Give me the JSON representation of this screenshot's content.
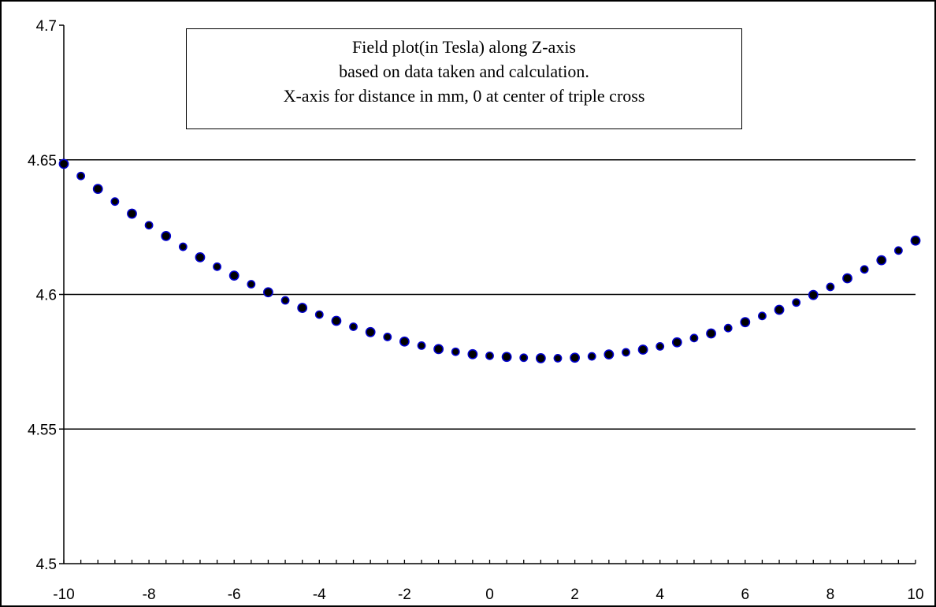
{
  "chart_data": {
    "type": "scatter",
    "title_lines": [
      "Field plot(in Tesla) along Z-axis",
      "based on data taken and calculation.",
      "X-axis for distance in mm, 0 at center of triple cross"
    ],
    "xlim": [
      -10,
      10
    ],
    "ylim": [
      4.5,
      4.7
    ],
    "x_ticks": [
      "-10",
      "-8",
      "-6",
      "-4",
      "-2",
      "0",
      "2",
      "4",
      "6",
      "8",
      "10"
    ],
    "y_ticks": [
      "4.5",
      "4.55",
      "4.6",
      "4.65",
      "4.7"
    ],
    "x_minor_step": 0.4,
    "grid": "horizontal-major",
    "marker_fill": "#000000",
    "marker_edge": "#0000cc",
    "x": [
      -10.0,
      -9.6,
      -9.2,
      -8.8,
      -8.4,
      -8.0,
      -7.6,
      -7.2,
      -6.8,
      -6.4,
      -6.0,
      -5.6,
      -5.2,
      -4.8,
      -4.4,
      -4.0,
      -3.6,
      -3.2,
      -2.8,
      -2.4,
      -2.0,
      -1.6,
      -1.2,
      -0.8,
      -0.4,
      0.0,
      0.4,
      0.8,
      1.2,
      1.6,
      2.0,
      2.4,
      2.8,
      3.2,
      3.6,
      4.0,
      4.4,
      4.8,
      5.2,
      5.6,
      6.0,
      6.4,
      6.8,
      7.2,
      7.6,
      8.0,
      8.4,
      8.8,
      9.2,
      9.6,
      10.0
    ],
    "y": [
      4.6485,
      4.644,
      4.6392,
      4.6345,
      4.63,
      4.6257,
      4.6217,
      4.6177,
      4.6138,
      4.6103,
      4.607,
      4.6038,
      4.6008,
      4.5978,
      4.595,
      4.5925,
      4.5902,
      4.588,
      4.586,
      4.5842,
      4.5825,
      4.581,
      4.5797,
      4.5787,
      4.5778,
      4.5772,
      4.5768,
      4.5765,
      4.5763,
      4.5763,
      4.5765,
      4.577,
      4.5777,
      4.5785,
      4.5795,
      4.5807,
      4.5822,
      4.5838,
      4.5855,
      4.5875,
      4.5897,
      4.592,
      4.5943,
      4.597,
      4.5998,
      4.6028,
      4.606,
      4.6093,
      4.6127,
      4.6163,
      4.62
    ]
  }
}
